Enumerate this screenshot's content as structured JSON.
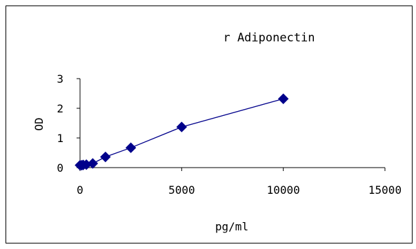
{
  "chart_data": {
    "type": "line",
    "title": "r Adiponectin",
    "xlabel": "pg/ml",
    "ylabel": "OD",
    "xlim": [
      0,
      15000
    ],
    "ylim": [
      0,
      3
    ],
    "xticks": [
      0,
      5000,
      10000,
      15000
    ],
    "yticks": [
      0,
      1,
      2,
      3
    ],
    "grid": false,
    "legend": "none",
    "series": [
      {
        "color": "#00008b",
        "marker": "diamond",
        "x": [
          0,
          78,
          156,
          312,
          625,
          1250,
          2500,
          5000,
          10000
        ],
        "y": [
          0.08,
          0.08,
          0.09,
          0.1,
          0.14,
          0.36,
          0.67,
          1.37,
          2.32
        ]
      }
    ]
  }
}
